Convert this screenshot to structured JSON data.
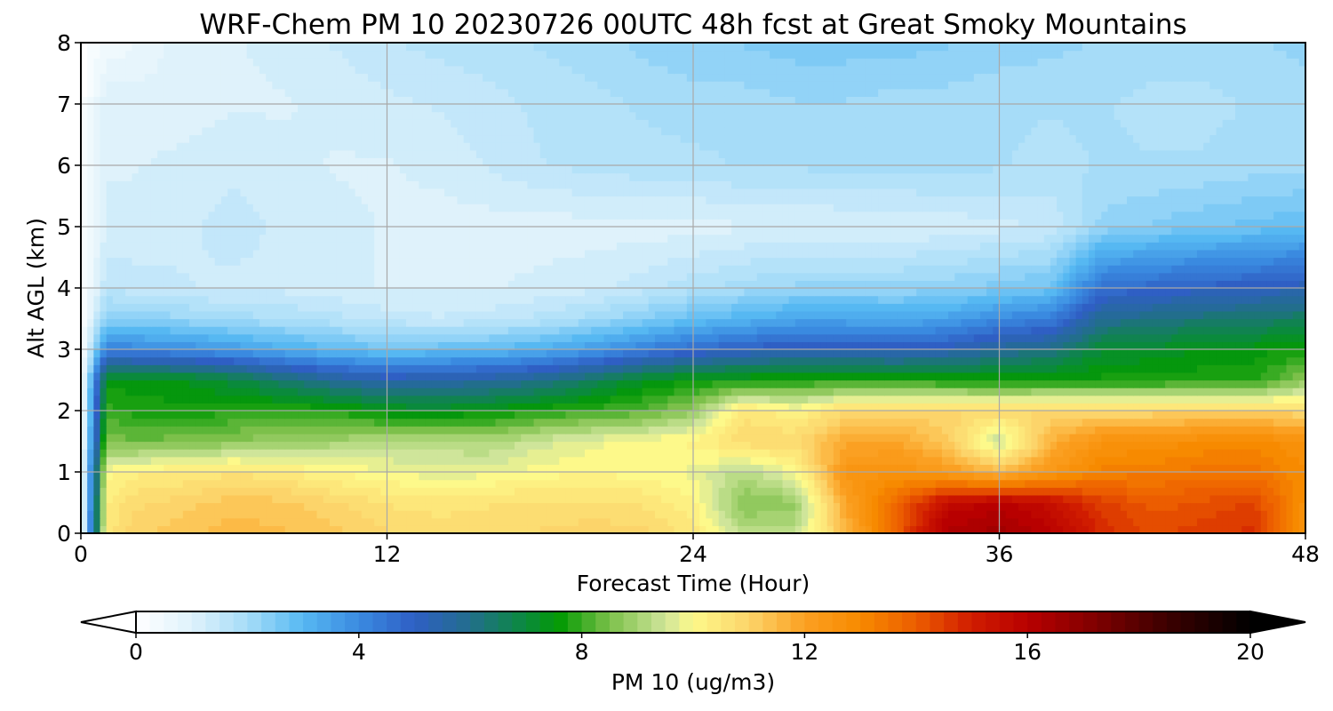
{
  "chart_data": {
    "type": "heatmap",
    "title": "WRF-Chem PM 10  20230726 00UTC 48h fcst at Great Smoky Mountains",
    "xlabel": "Forecast Time (Hour)",
    "ylabel": "Alt AGL (km)",
    "xlim": [
      0,
      48
    ],
    "ylim": [
      0,
      8
    ],
    "xticks": [
      0,
      12,
      24,
      36,
      48
    ],
    "yticks": [
      0,
      1,
      2,
      3,
      4,
      5,
      6,
      7,
      8
    ],
    "grid": true,
    "colorbar": {
      "label": "PM 10  (ug/m3)",
      "range": [
        0,
        20
      ],
      "ticks": [
        0,
        4,
        8,
        12,
        16,
        20
      ],
      "extend": "both",
      "orientation": "horizontal",
      "placement": "bottom",
      "colors": [
        {
          "v": 0,
          "c": "#ffffff"
        },
        {
          "v": 1,
          "c": "#dff2fb"
        },
        {
          "v": 2,
          "c": "#a6dcf8"
        },
        {
          "v": 3,
          "c": "#56b8f2"
        },
        {
          "v": 4,
          "c": "#3a8ae0"
        },
        {
          "v": 5,
          "c": "#2f5fc4"
        },
        {
          "v": 6,
          "c": "#226e8c"
        },
        {
          "v": 7,
          "c": "#0a8a3c"
        },
        {
          "v": 7.6,
          "c": "#049a04"
        },
        {
          "v": 8.5,
          "c": "#7cc04a"
        },
        {
          "v": 9.5,
          "c": "#cfe59a"
        },
        {
          "v": 10,
          "c": "#fdf98a"
        },
        {
          "v": 11,
          "c": "#fcd46a"
        },
        {
          "v": 12,
          "c": "#fba022"
        },
        {
          "v": 13,
          "c": "#f78a00"
        },
        {
          "v": 14,
          "c": "#ec5d00"
        },
        {
          "v": 15,
          "c": "#d01c00"
        },
        {
          "v": 16,
          "c": "#b80000"
        },
        {
          "v": 17,
          "c": "#8a0000"
        },
        {
          "v": 18.5,
          "c": "#3c0000"
        },
        {
          "v": 20,
          "c": "#000000"
        }
      ]
    },
    "hours": [
      0,
      1,
      2,
      4,
      6,
      8,
      10,
      12,
      14,
      16,
      18,
      20,
      22,
      24,
      26,
      28,
      30,
      32,
      34,
      36,
      38,
      40,
      42,
      44,
      46,
      48
    ],
    "alt_km": [
      0,
      0.5,
      1,
      1.5,
      2,
      2.5,
      3,
      3.5,
      4,
      5,
      6,
      7,
      8
    ],
    "values": [
      [
        0,
        10.5,
        11.0,
        11.3,
        11.5,
        11.4,
        11.2,
        10.9,
        10.8,
        10.8,
        10.9,
        11.0,
        11.0,
        10.5,
        9.2,
        9.3,
        11.5,
        14.0,
        16.3,
        16.5,
        16.0,
        14.8,
        14.3,
        14.5,
        14.7,
        12.5
      ],
      [
        0,
        10.3,
        10.8,
        11.0,
        11.3,
        11.2,
        10.9,
        10.6,
        10.5,
        10.6,
        10.7,
        10.7,
        10.6,
        10.2,
        8.6,
        8.8,
        12.0,
        13.8,
        15.6,
        16.0,
        15.5,
        14.5,
        14.0,
        14.2,
        14.4,
        12.8
      ],
      [
        0,
        10.0,
        10.3,
        10.4,
        10.6,
        10.4,
        10.1,
        9.9,
        9.7,
        9.8,
        10.0,
        10.1,
        10.0,
        9.8,
        9.2,
        9.9,
        12.5,
        12.6,
        12.2,
        11.5,
        12.4,
        13.2,
        13.3,
        13.5,
        13.5,
        12.9
      ],
      [
        0,
        8.6,
        8.4,
        8.5,
        8.7,
        8.8,
        9.0,
        9.2,
        9.2,
        9.1,
        9.5,
        9.8,
        10.0,
        10.2,
        10.8,
        10.9,
        11.8,
        11.9,
        11.2,
        9.3,
        11.6,
        12.6,
        12.7,
        12.9,
        13.0,
        12.6
      ],
      [
        0,
        8.0,
        7.8,
        7.7,
        7.8,
        7.9,
        7.8,
        7.4,
        7.3,
        7.5,
        7.8,
        8.0,
        8.2,
        8.8,
        10.6,
        10.1,
        10.9,
        10.9,
        10.9,
        10.9,
        10.9,
        10.9,
        10.9,
        10.9,
        10.9,
        10.9
      ],
      [
        0,
        7.5,
        7.5,
        7.4,
        7.0,
        6.4,
        5.8,
        5.4,
        5.6,
        5.7,
        6.0,
        6.6,
        7.3,
        7.6,
        7.7,
        7.8,
        7.8,
        7.8,
        7.7,
        7.6,
        7.7,
        7.7,
        7.7,
        7.8,
        7.8,
        8.7
      ],
      [
        0,
        4.2,
        4.1,
        3.9,
        3.6,
        3.2,
        2.9,
        2.7,
        2.8,
        2.9,
        3.2,
        3.6,
        4.2,
        4.7,
        5.0,
        5.3,
        5.2,
        5.1,
        5.3,
        5.8,
        6.1,
        7.1,
        7.2,
        7.4,
        7.5,
        7.7
      ],
      [
        0,
        2.4,
        2.3,
        2.2,
        2.0,
        1.9,
        1.7,
        1.5,
        1.4,
        1.5,
        1.7,
        2.0,
        2.4,
        2.8,
        3.1,
        3.4,
        3.4,
        3.3,
        3.5,
        4.0,
        4.3,
        5.9,
        6.1,
        6.3,
        6.4,
        6.6
      ],
      [
        0,
        1.6,
        1.5,
        1.4,
        1.3,
        1.3,
        1.2,
        1.1,
        1.1,
        1.1,
        1.2,
        1.3,
        1.5,
        1.8,
        2.0,
        2.2,
        2.2,
        2.2,
        2.3,
        2.5,
        2.7,
        4.6,
        4.8,
        5.0,
        5.1,
        5.3
      ],
      [
        0,
        1.2,
        1.2,
        1.3,
        1.5,
        1.3,
        1.2,
        1.1,
        1.0,
        1.0,
        1.0,
        1.0,
        1.0,
        1.0,
        1.1,
        1.1,
        1.1,
        1.1,
        1.2,
        1.3,
        1.4,
        2.2,
        2.4,
        2.6,
        2.7,
        2.9
      ],
      [
        0,
        1.1,
        1.1,
        1.2,
        1.3,
        1.2,
        1.1,
        1.1,
        1.2,
        1.4,
        1.6,
        1.7,
        1.8,
        1.8,
        1.9,
        1.9,
        2.0,
        2.0,
        2.0,
        1.9,
        1.8,
        1.9,
        1.9,
        1.9,
        2.0,
        2.0
      ],
      [
        0,
        1.1,
        1.0,
        1.0,
        1.1,
        1.1,
        1.2,
        1.3,
        1.4,
        1.5,
        1.7,
        1.8,
        1.9,
        2.0,
        2.0,
        2.1,
        2.1,
        2.0,
        2.0,
        1.9,
        1.9,
        1.9,
        1.8,
        1.8,
        1.9,
        2.0
      ],
      [
        0,
        0.4,
        0.6,
        1.0,
        1.1,
        1.2,
        1.4,
        1.6,
        1.7,
        1.8,
        1.9,
        2.0,
        2.2,
        2.3,
        2.4,
        2.5,
        2.5,
        2.5,
        2.4,
        2.3,
        2.2,
        2.1,
        2.0,
        2.0,
        2.1,
        2.2
      ]
    ]
  }
}
